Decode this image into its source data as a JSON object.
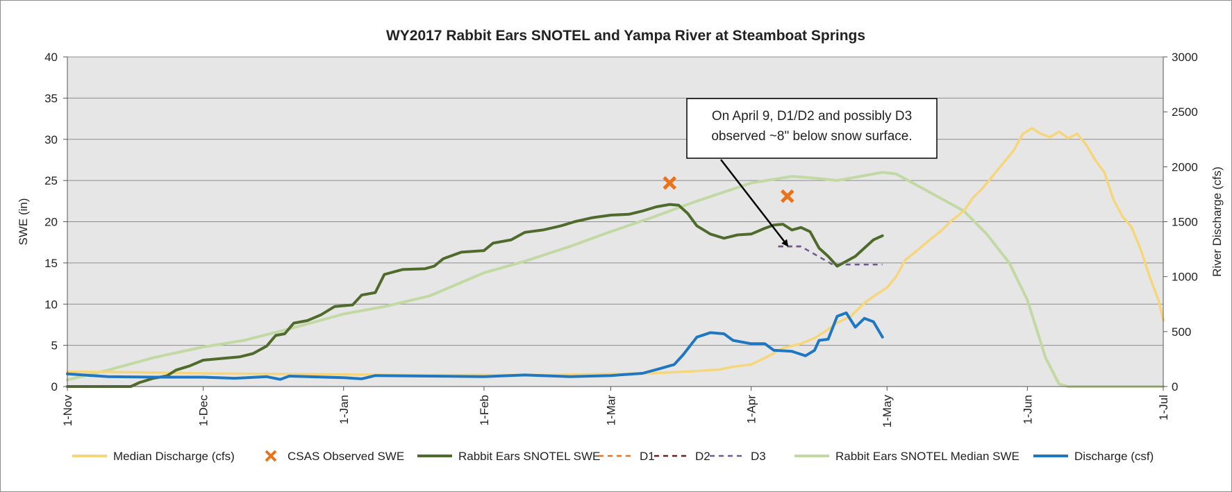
{
  "chart_data": {
    "type": "line",
    "title": "WY2017 Rabbit Ears SNOTEL and Yampa River at Steamboat Springs",
    "ylabel": "SWE (in)",
    "y2label": "River Discharge (cfs)",
    "ylim": [
      0,
      40
    ],
    "y2lim": [
      0,
      3000
    ],
    "yticks": [
      "0",
      "5",
      "10",
      "15",
      "20",
      "25",
      "30",
      "35",
      "40"
    ],
    "y2ticks": [
      "0",
      "500",
      "1000",
      "1500",
      "2000",
      "2500",
      "3000"
    ],
    "xlim": [
      "2016-11-01",
      "2017-07-01"
    ],
    "xticks": [
      {
        "label": "1-Nov",
        "date": "2016-11-01"
      },
      {
        "label": "1-Dec",
        "date": "2016-12-01"
      },
      {
        "label": "1-Jan",
        "date": "2017-01-01"
      },
      {
        "label": "1-Feb",
        "date": "2017-02-01"
      },
      {
        "label": "1-Mar",
        "date": "2017-03-01"
      },
      {
        "label": "1-Apr",
        "date": "2017-04-01"
      },
      {
        "label": "1-May",
        "date": "2017-05-01"
      },
      {
        "label": "1-Jun",
        "date": "2017-06-01"
      },
      {
        "label": "1-Jul",
        "date": "2017-07-01"
      }
    ],
    "grid": true,
    "legend_position": "bottom",
    "annotation": "On April 9, D1/D2 and possibly D3 observed ~8\" below snow surface.",
    "series": [
      {
        "name": "Median Discharge (cfs)",
        "axis": "right",
        "kind": "line",
        "color": "#f6d67a",
        "width": 3.5,
        "points": [
          [
            "2016-11-01",
            135
          ],
          [
            "2016-11-15",
            130
          ],
          [
            "2016-12-01",
            120
          ],
          [
            "2016-12-15",
            115
          ],
          [
            "2017-01-01",
            110
          ],
          [
            "2017-01-15",
            105
          ],
          [
            "2017-02-01",
            105
          ],
          [
            "2017-02-15",
            105
          ],
          [
            "2017-03-01",
            115
          ],
          [
            "2017-03-10",
            120
          ],
          [
            "2017-03-15",
            130
          ],
          [
            "2017-03-20",
            140
          ],
          [
            "2017-03-25",
            155
          ],
          [
            "2017-03-28",
            180
          ],
          [
            "2017-04-01",
            200
          ],
          [
            "2017-04-05",
            280
          ],
          [
            "2017-04-08",
            350
          ],
          [
            "2017-04-12",
            390
          ],
          [
            "2017-04-15",
            440
          ],
          [
            "2017-04-18",
            520
          ],
          [
            "2017-04-20",
            580
          ],
          [
            "2017-04-23",
            640
          ],
          [
            "2017-04-26",
            760
          ],
          [
            "2017-04-28",
            820
          ],
          [
            "2017-05-01",
            900
          ],
          [
            "2017-05-03",
            1000
          ],
          [
            "2017-05-05",
            1150
          ],
          [
            "2017-05-08",
            1250
          ],
          [
            "2017-05-10",
            1320
          ],
          [
            "2017-05-13",
            1420
          ],
          [
            "2017-05-15",
            1500
          ],
          [
            "2017-05-18",
            1600
          ],
          [
            "2017-05-20",
            1720
          ],
          [
            "2017-05-22",
            1800
          ],
          [
            "2017-05-25",
            1950
          ],
          [
            "2017-05-27",
            2050
          ],
          [
            "2017-05-29",
            2150
          ],
          [
            "2017-05-31",
            2300
          ],
          [
            "2017-06-02",
            2350
          ],
          [
            "2017-06-04",
            2300
          ],
          [
            "2017-06-06",
            2270
          ],
          [
            "2017-06-08",
            2320
          ],
          [
            "2017-06-10",
            2260
          ],
          [
            "2017-06-12",
            2300
          ],
          [
            "2017-06-14",
            2200
          ],
          [
            "2017-06-16",
            2060
          ],
          [
            "2017-06-18",
            1950
          ],
          [
            "2017-06-20",
            1700
          ],
          [
            "2017-06-22",
            1550
          ],
          [
            "2017-06-24",
            1450
          ],
          [
            "2017-06-26",
            1250
          ],
          [
            "2017-06-28",
            1000
          ],
          [
            "2017-06-30",
            780
          ],
          [
            "2017-07-01",
            600
          ]
        ]
      },
      {
        "name": "CSAS Observed SWE",
        "axis": "left",
        "kind": "marker",
        "color": "#e8731a",
        "points": [
          [
            "2017-03-14",
            24.7
          ],
          [
            "2017-04-09",
            23.1
          ]
        ]
      },
      {
        "name": "Rabbit Ears SNOTEL SWE",
        "axis": "left",
        "kind": "line",
        "color": "#4e6b2c",
        "width": 4,
        "points": [
          [
            "2016-11-01",
            0
          ],
          [
            "2016-11-15",
            0
          ],
          [
            "2016-11-17",
            0.5
          ],
          [
            "2016-11-20",
            1.0
          ],
          [
            "2016-11-23",
            1.3
          ],
          [
            "2016-11-25",
            2.0
          ],
          [
            "2016-11-28",
            2.5
          ],
          [
            "2016-12-01",
            3.2
          ],
          [
            "2016-12-05",
            3.4
          ],
          [
            "2016-12-09",
            3.6
          ],
          [
            "2016-12-12",
            4.0
          ],
          [
            "2016-12-15",
            4.9
          ],
          [
            "2016-12-17",
            6.2
          ],
          [
            "2016-12-19",
            6.4
          ],
          [
            "2016-12-21",
            7.7
          ],
          [
            "2016-12-24",
            8.0
          ],
          [
            "2016-12-27",
            8.7
          ],
          [
            "2016-12-30",
            9.7
          ],
          [
            "2017-01-03",
            9.9
          ],
          [
            "2017-01-05",
            11.1
          ],
          [
            "2017-01-08",
            11.4
          ],
          [
            "2017-01-10",
            13.6
          ],
          [
            "2017-01-14",
            14.2
          ],
          [
            "2017-01-19",
            14.3
          ],
          [
            "2017-01-21",
            14.6
          ],
          [
            "2017-01-23",
            15.5
          ],
          [
            "2017-01-27",
            16.3
          ],
          [
            "2017-02-01",
            16.5
          ],
          [
            "2017-02-03",
            17.4
          ],
          [
            "2017-02-07",
            17.8
          ],
          [
            "2017-02-10",
            18.7
          ],
          [
            "2017-02-14",
            19.0
          ],
          [
            "2017-02-18",
            19.5
          ],
          [
            "2017-02-21",
            20.0
          ],
          [
            "2017-02-25",
            20.5
          ],
          [
            "2017-03-01",
            20.8
          ],
          [
            "2017-03-05",
            20.9
          ],
          [
            "2017-03-08",
            21.3
          ],
          [
            "2017-03-11",
            21.8
          ],
          [
            "2017-03-14",
            22.1
          ],
          [
            "2017-03-16",
            22.0
          ],
          [
            "2017-03-18",
            21.0
          ],
          [
            "2017-03-20",
            19.5
          ],
          [
            "2017-03-23",
            18.5
          ],
          [
            "2017-03-26",
            18.0
          ],
          [
            "2017-03-29",
            18.4
          ],
          [
            "2017-04-01",
            18.5
          ],
          [
            "2017-04-04",
            19.2
          ],
          [
            "2017-04-06",
            19.6
          ],
          [
            "2017-04-08",
            19.7
          ],
          [
            "2017-04-10",
            19.0
          ],
          [
            "2017-04-12",
            19.3
          ],
          [
            "2017-04-14",
            18.8
          ],
          [
            "2017-04-16",
            16.8
          ],
          [
            "2017-04-18",
            15.8
          ],
          [
            "2017-04-20",
            14.6
          ],
          [
            "2017-04-22",
            15.2
          ],
          [
            "2017-04-24",
            15.8
          ],
          [
            "2017-04-26",
            16.8
          ],
          [
            "2017-04-28",
            17.8
          ],
          [
            "2017-04-30",
            18.3
          ]
        ]
      },
      {
        "name": "D1",
        "axis": "left",
        "kind": "dash",
        "color": "#e8731a",
        "width": 2.5,
        "points": [
          [
            "2017-04-07",
            17
          ],
          [
            "2017-04-12",
            17
          ]
        ]
      },
      {
        "name": "D2",
        "axis": "left",
        "kind": "dash",
        "color": "#6b1f1f",
        "width": 2.5,
        "points": [
          [
            "2017-04-07",
            17
          ],
          [
            "2017-04-12",
            17
          ]
        ]
      },
      {
        "name": "D3",
        "axis": "left",
        "kind": "dash",
        "color": "#6e5a8e",
        "width": 2.5,
        "points": [
          [
            "2017-04-07",
            17
          ],
          [
            "2017-04-12",
            17
          ],
          [
            "2017-04-19",
            14.8
          ],
          [
            "2017-04-30",
            14.8
          ]
        ]
      },
      {
        "name": "Rabbit Ears SNOTEL Median SWE",
        "axis": "left",
        "kind": "line",
        "color": "#c2d9a3",
        "width": 4,
        "points": [
          [
            "2016-11-01",
            0.8
          ],
          [
            "2016-11-10",
            2.0
          ],
          [
            "2016-11-20",
            3.5
          ],
          [
            "2016-12-01",
            4.8
          ],
          [
            "2016-12-10",
            5.6
          ],
          [
            "2016-12-20",
            7.0
          ],
          [
            "2017-01-01",
            8.8
          ],
          [
            "2017-01-10",
            9.7
          ],
          [
            "2017-01-20",
            11.0
          ],
          [
            "2017-02-01",
            13.8
          ],
          [
            "2017-02-10",
            15.2
          ],
          [
            "2017-02-20",
            17.0
          ],
          [
            "2017-03-01",
            18.8
          ],
          [
            "2017-03-10",
            20.5
          ],
          [
            "2017-03-20",
            22.5
          ],
          [
            "2017-04-01",
            24.7
          ],
          [
            "2017-04-10",
            25.5
          ],
          [
            "2017-04-15",
            25.3
          ],
          [
            "2017-04-20",
            25.0
          ],
          [
            "2017-04-25",
            25.5
          ],
          [
            "2017-04-30",
            26.0
          ],
          [
            "2017-05-03",
            25.8
          ],
          [
            "2017-05-08",
            24.3
          ],
          [
            "2017-05-13",
            22.8
          ],
          [
            "2017-05-18",
            21.3
          ],
          [
            "2017-05-23",
            18.5
          ],
          [
            "2017-05-28",
            15.0
          ],
          [
            "2017-06-01",
            10.5
          ],
          [
            "2017-06-05",
            3.5
          ],
          [
            "2017-06-08",
            0.3
          ],
          [
            "2017-06-10",
            0
          ],
          [
            "2017-07-01",
            0
          ]
        ]
      },
      {
        "name": "Discharge (csf)",
        "axis": "right",
        "kind": "line",
        "color": "#1f77c2",
        "width": 4,
        "points": [
          [
            "2016-11-01",
            115
          ],
          [
            "2016-11-10",
            90
          ],
          [
            "2016-11-20",
            85
          ],
          [
            "2016-12-01",
            85
          ],
          [
            "2016-12-08",
            75
          ],
          [
            "2016-12-15",
            90
          ],
          [
            "2016-12-18",
            65
          ],
          [
            "2016-12-20",
            95
          ],
          [
            "2017-01-01",
            80
          ],
          [
            "2017-01-05",
            70
          ],
          [
            "2017-01-08",
            100
          ],
          [
            "2017-01-20",
            95
          ],
          [
            "2017-02-01",
            90
          ],
          [
            "2017-02-10",
            105
          ],
          [
            "2017-02-20",
            90
          ],
          [
            "2017-03-01",
            100
          ],
          [
            "2017-03-08",
            120
          ],
          [
            "2017-03-12",
            165
          ],
          [
            "2017-03-15",
            200
          ],
          [
            "2017-03-17",
            290
          ],
          [
            "2017-03-20",
            450
          ],
          [
            "2017-03-23",
            490
          ],
          [
            "2017-03-26",
            480
          ],
          [
            "2017-03-28",
            420
          ],
          [
            "2017-04-01",
            390
          ],
          [
            "2017-04-04",
            390
          ],
          [
            "2017-04-06",
            330
          ],
          [
            "2017-04-10",
            320
          ],
          [
            "2017-04-13",
            280
          ],
          [
            "2017-04-15",
            330
          ],
          [
            "2017-04-16",
            420
          ],
          [
            "2017-04-18",
            430
          ],
          [
            "2017-04-20",
            640
          ],
          [
            "2017-04-22",
            670
          ],
          [
            "2017-04-24",
            540
          ],
          [
            "2017-04-26",
            620
          ],
          [
            "2017-04-28",
            590
          ],
          [
            "2017-04-30",
            450
          ]
        ]
      }
    ]
  },
  "legend": [
    {
      "label": "Median Discharge (cfs)",
      "type": "line",
      "color": "#f6d67a"
    },
    {
      "label": "CSAS Observed SWE",
      "type": "marker",
      "color": "#e8731a"
    },
    {
      "label": "Rabbit Ears SNOTEL SWE",
      "type": "line",
      "color": "#4e6b2c"
    },
    {
      "label": "D1",
      "type": "dash",
      "color": "#e8731a"
    },
    {
      "label": "D2",
      "type": "dash",
      "color": "#6b1f1f"
    },
    {
      "label": "D3",
      "type": "dash",
      "color": "#6e5a8e"
    },
    {
      "label": "Rabbit Ears SNOTEL Median SWE",
      "type": "line",
      "color": "#c2d9a3"
    },
    {
      "label": "Discharge (csf)",
      "type": "line",
      "color": "#1f77c2"
    }
  ],
  "colors": {
    "plot_background": "#e6e6e6",
    "gridline": "#8c8c8c",
    "axis": "#555555"
  }
}
